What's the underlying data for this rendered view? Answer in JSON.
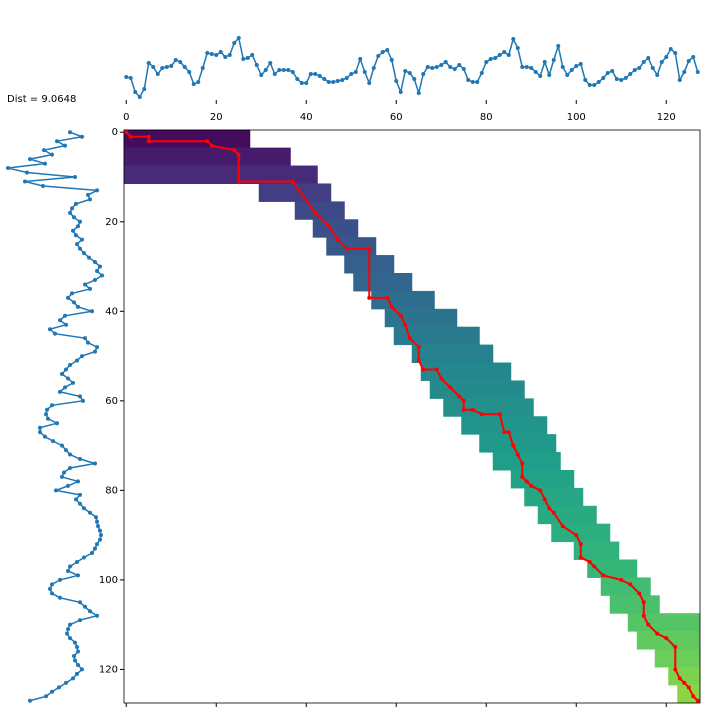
{
  "chart_data": [
    {
      "type": "line",
      "color": "#1f77b4",
      "xlim": [
        -0.5,
        127.5
      ],
      "ylim": [
        0,
        70
      ],
      "xticks": [
        0,
        20,
        40,
        60,
        80,
        100,
        120
      ],
      "values": [
        23,
        22,
        8,
        3,
        11,
        37,
        33,
        26,
        32,
        33,
        34,
        40,
        38,
        33,
        28,
        16,
        18,
        32,
        47,
        46,
        45,
        48,
        43,
        45,
        57,
        62,
        41,
        42,
        45,
        35,
        25,
        30,
        37,
        26,
        30,
        30,
        30,
        28,
        21,
        17,
        17,
        26,
        26,
        24,
        21,
        18,
        18,
        19,
        20,
        22,
        26,
        28,
        41,
        28,
        17,
        32,
        44,
        48,
        50,
        40,
        19,
        8,
        29,
        27,
        21,
        7,
        26,
        33,
        32,
        33,
        35,
        38,
        33,
        31,
        35,
        31,
        20,
        18,
        18,
        27,
        38,
        41,
        42,
        45,
        48,
        45,
        61,
        52,
        33,
        33,
        32,
        28,
        24,
        38,
        25,
        40,
        54,
        33,
        25,
        30,
        34,
        36,
        20,
        15,
        15,
        18,
        22,
        27,
        29,
        21,
        20,
        22,
        26,
        30,
        32,
        38,
        42,
        32,
        25,
        38,
        43,
        51,
        47,
        20,
        28,
        39,
        43,
        28
      ]
    },
    {
      "type": "line",
      "orientation": "vertical",
      "color": "#1f77b4",
      "xlim": [
        0,
        110
      ],
      "ylim": [
        -0.5,
        127.5
      ],
      "values": [
        70,
        82,
        57,
        65,
        44,
        52,
        30,
        45,
        8,
        27,
        75,
        25,
        43,
        97,
        88,
        90,
        76,
        72,
        70,
        74,
        80,
        78,
        73,
        76,
        82,
        77,
        80,
        84,
        89,
        95,
        100,
        97,
        102,
        95,
        85,
        90,
        72,
        68,
        74,
        78,
        92,
        65,
        60,
        66,
        50,
        55,
        85,
        88,
        97,
        95,
        82,
        77,
        70,
        66,
        62,
        68,
        73,
        65,
        60,
        80,
        83,
        52,
        47,
        46,
        48,
        57,
        40,
        40,
        45,
        53,
        62,
        66,
        70,
        80,
        95,
        70,
        64,
        62,
        78,
        68,
        56,
        80,
        76,
        80,
        84,
        90,
        96,
        97,
        98,
        100,
        101,
        100,
        97,
        95,
        92,
        84,
        77,
        70,
        68,
        78,
        60,
        52,
        50,
        52,
        60,
        80,
        85,
        90,
        97,
        80,
        70,
        68,
        67,
        70,
        75,
        77,
        78,
        74,
        75,
        78,
        82,
        77,
        73,
        66,
        59,
        52,
        46,
        30
      ]
    },
    {
      "type": "heatmap",
      "annotation": "Dist = 9.0648",
      "xlim": [
        -0.5,
        127.5
      ],
      "ylim": [
        -0.5,
        127.5
      ],
      "xticks": [
        0,
        20,
        40,
        60,
        80,
        100,
        120
      ],
      "yticks": [
        0,
        20,
        40,
        60,
        80,
        100,
        120
      ],
      "clim": [
        0,
        11
      ],
      "cmap": [
        "#440154",
        "#482878",
        "#3e4a89",
        "#31688e",
        "#26828e",
        "#1f9e89",
        "#35b779",
        "#6ece58",
        "#b5de2b",
        "#fde725"
      ],
      "cells": [
        {
          "rows": [
            0,
            3
          ],
          "cols": [
            0,
            27
          ],
          "value": 0.3
        },
        {
          "rows": [
            4,
            7
          ],
          "cols": [
            0,
            36
          ],
          "value": 0.8
        },
        {
          "rows": [
            8,
            11
          ],
          "cols": [
            0,
            42
          ],
          "value": 1.3
        },
        {
          "rows": [
            12,
            15
          ],
          "cols": [
            30,
            45
          ],
          "value": 2.0
        },
        {
          "rows": [
            16,
            19
          ],
          "cols": [
            38,
            48
          ],
          "value": 2.4
        },
        {
          "rows": [
            20,
            23
          ],
          "cols": [
            42,
            51
          ],
          "value": 2.7
        },
        {
          "rows": [
            24,
            27
          ],
          "cols": [
            45,
            55
          ],
          "value": 3.0
        },
        {
          "rows": [
            28,
            31
          ],
          "cols": [
            49,
            59
          ],
          "value": 3.3
        },
        {
          "rows": [
            32,
            35
          ],
          "cols": [
            51,
            63
          ],
          "value": 3.6
        },
        {
          "rows": [
            36,
            39
          ],
          "cols": [
            55,
            68
          ],
          "value": 3.9
        },
        {
          "rows": [
            40,
            43
          ],
          "cols": [
            58,
            73
          ],
          "value": 4.2
        },
        {
          "rows": [
            44,
            47
          ],
          "cols": [
            60,
            78
          ],
          "value": 4.5
        },
        {
          "rows": [
            48,
            51
          ],
          "cols": [
            64,
            81
          ],
          "value": 4.8
        },
        {
          "rows": [
            52,
            55
          ],
          "cols": [
            66,
            85
          ],
          "value": 5.1
        },
        {
          "rows": [
            56,
            59
          ],
          "cols": [
            68,
            88
          ],
          "value": 5.3
        },
        {
          "rows": [
            60,
            63
          ],
          "cols": [
            71,
            90
          ],
          "value": 5.5
        },
        {
          "rows": [
            64,
            67
          ],
          "cols": [
            75,
            93
          ],
          "value": 5.7
        },
        {
          "rows": [
            68,
            71
          ],
          "cols": [
            79,
            95
          ],
          "value": 5.9
        },
        {
          "rows": [
            72,
            75
          ],
          "cols": [
            82,
            96
          ],
          "value": 6.1
        },
        {
          "rows": [
            76,
            79
          ],
          "cols": [
            86,
            99
          ],
          "value": 6.3
        },
        {
          "rows": [
            80,
            83
          ],
          "cols": [
            89,
            101
          ],
          "value": 6.5
        },
        {
          "rows": [
            84,
            87
          ],
          "cols": [
            92,
            104
          ],
          "value": 6.7
        },
        {
          "rows": [
            88,
            91
          ],
          "cols": [
            95,
            107
          ],
          "value": 6.9
        },
        {
          "rows": [
            92,
            95
          ],
          "cols": [
            100,
            109
          ],
          "value": 7.1
        },
        {
          "rows": [
            96,
            99
          ],
          "cols": [
            103,
            113
          ],
          "value": 7.3
        },
        {
          "rows": [
            100,
            103
          ],
          "cols": [
            106,
            116
          ],
          "value": 7.6
        },
        {
          "rows": [
            104,
            107
          ],
          "cols": [
            108,
            118
          ],
          "value": 7.8
        },
        {
          "rows": [
            108,
            111
          ],
          "cols": [
            112,
            127
          ],
          "value": 8.0
        },
        {
          "rows": [
            112,
            115
          ],
          "cols": [
            114,
            127
          ],
          "value": 8.3
        },
        {
          "rows": [
            116,
            119
          ],
          "cols": [
            118,
            127
          ],
          "value": 8.5
        },
        {
          "rows": [
            120,
            123
          ],
          "cols": [
            121,
            127
          ],
          "value": 8.8
        },
        {
          "rows": [
            124,
            127
          ],
          "cols": [
            123,
            127
          ],
          "value": 9.06
        }
      ],
      "path": {
        "color": "#ff0000",
        "x": [
          0,
          1,
          5,
          5,
          18,
          19,
          24,
          25,
          25,
          37,
          42,
          45,
          47,
          49,
          54,
          54,
          58,
          59,
          61,
          62,
          63,
          65,
          65,
          66,
          69,
          70,
          72,
          74,
          75,
          75,
          77,
          79,
          83,
          84,
          85,
          86,
          87,
          88,
          88,
          89,
          90,
          92,
          93,
          94,
          95,
          97,
          100,
          101,
          101,
          103,
          104,
          106,
          110,
          112,
          114,
          115,
          115,
          116,
          118,
          120,
          122,
          122,
          123,
          124,
          125,
          126,
          127
        ],
        "y": [
          0,
          1,
          1,
          2,
          2,
          3,
          4,
          5,
          11,
          11,
          18,
          21,
          24,
          26,
          26,
          37,
          37,
          39,
          41,
          43,
          46,
          48,
          51,
          53,
          53,
          55,
          57,
          59,
          60,
          62,
          62,
          63,
          63,
          67,
          67,
          70,
          72,
          74,
          77,
          78,
          79,
          80,
          82,
          84,
          85,
          88,
          90,
          92,
          95,
          96,
          97,
          99,
          100,
          101,
          103,
          105,
          108,
          110,
          112,
          113,
          115,
          120,
          122,
          123,
          124,
          126,
          127
        ]
      }
    }
  ]
}
